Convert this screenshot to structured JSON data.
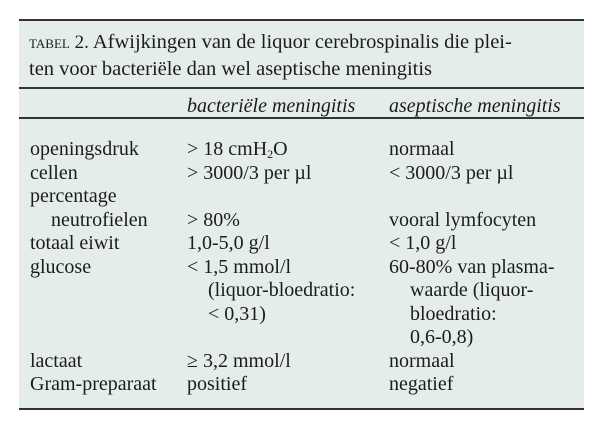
{
  "table": {
    "label": "tabel 2.",
    "caption": "Afwijkingen van de liquor cerebrospinalis die pleiten voor bacteriële dan wel aseptische meningitis",
    "caption_line1": " Afwijkingen van de liquor cerebrospinalis die plei-",
    "caption_line2": "ten voor bacteriële dan wel aseptische meningitis",
    "columns": [
      "",
      "bacteriële meningitis",
      "aseptische meningitis"
    ],
    "rows": [
      {
        "label": [
          "openingsdruk"
        ],
        "bacterial": [
          "> 18 cmH",
          "2",
          "O"
        ],
        "aseptic": [
          "normaal"
        ]
      },
      {
        "label": [
          "cellen"
        ],
        "bacterial": [
          "> 3000/3 per µl"
        ],
        "aseptic": [
          "< 3000/3 per µl"
        ]
      },
      {
        "label": [
          "percentage",
          "neutrofielen"
        ],
        "bacterial": [
          "> 80%"
        ],
        "aseptic": [
          "vooral lymfocyten"
        ]
      },
      {
        "label": [
          "totaal eiwit"
        ],
        "bacterial": [
          "1,0-5,0 g/l"
        ],
        "aseptic": [
          "< 1,0 g/l"
        ]
      },
      {
        "label": [
          "glucose"
        ],
        "bacterial": [
          "< 1,5 mmol/l",
          "(liquor-bloedratio:",
          "< 0,31)"
        ],
        "aseptic": [
          "60-80% van plasma-",
          "waarde (liquor-",
          "bloedratio:",
          "0,6-0,8)"
        ]
      },
      {
        "label": [
          "lactaat"
        ],
        "bacterial": [
          "≥ 3,2 mmol/l"
        ],
        "aseptic": [
          "normaal"
        ]
      },
      {
        "label": [
          "Gram-preparaat"
        ],
        "bacterial": [
          "positief"
        ],
        "aseptic": [
          "negatief"
        ]
      }
    ]
  }
}
